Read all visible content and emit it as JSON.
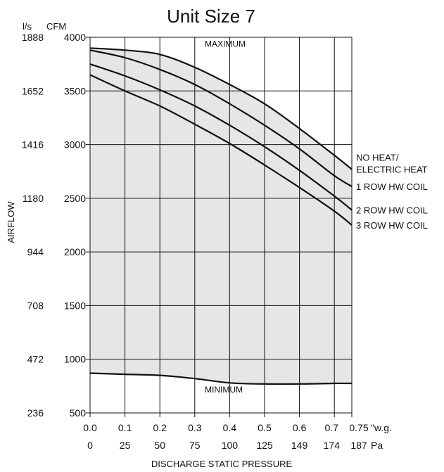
{
  "chart_data": {
    "type": "area",
    "title": "Unit Size 7",
    "ylabel": "AIRFLOW",
    "xlabel": "DISCHARGE STATIC PRESSURE",
    "y_unit_left": "l/s",
    "y_unit_right": "CFM",
    "x_unit_top": "\"w.g.",
    "x_unit_bottom": "Pa",
    "xlim": [
      0,
      0.75
    ],
    "ylim": [
      500,
      4000
    ],
    "grid": true,
    "x_ticks": [
      {
        "inwg": 0.0,
        "inwg_label": "0.0",
        "pa_label": "0"
      },
      {
        "inwg": 0.1,
        "inwg_label": "0.1",
        "pa_label": "25"
      },
      {
        "inwg": 0.2,
        "inwg_label": "0.2",
        "pa_label": "50"
      },
      {
        "inwg": 0.3,
        "inwg_label": "0.3",
        "pa_label": "75"
      },
      {
        "inwg": 0.4,
        "inwg_label": "0.4",
        "pa_label": "100"
      },
      {
        "inwg": 0.5,
        "inwg_label": "0.5",
        "pa_label": "125"
      },
      {
        "inwg": 0.6,
        "inwg_label": "0.6",
        "pa_label": "149"
      },
      {
        "inwg": 0.7,
        "inwg_label": "0.7",
        "pa_label": "174"
      },
      {
        "inwg": 0.75,
        "inwg_label": "0.75",
        "pa_label": "187"
      }
    ],
    "y_ticks": [
      {
        "cfm": 4000,
        "cfm_label": "4000",
        "ls_label": "1888"
      },
      {
        "cfm": 3500,
        "cfm_label": "3500",
        "ls_label": "1652"
      },
      {
        "cfm": 3000,
        "cfm_label": "3000",
        "ls_label": "1416"
      },
      {
        "cfm": 2500,
        "cfm_label": "2500",
        "ls_label": "1180"
      },
      {
        "cfm": 2000,
        "cfm_label": "2000",
        "ls_label": "944"
      },
      {
        "cfm": 1500,
        "cfm_label": "1500",
        "ls_label": "708"
      },
      {
        "cfm": 1000,
        "cfm_label": "1000",
        "ls_label": "472"
      },
      {
        "cfm": 500,
        "cfm_label": "500",
        "ls_label": "236"
      }
    ],
    "series": [
      {
        "name": "NO HEAT/ ELECTRIC HEAT",
        "label_lines": [
          "NO HEAT/",
          "ELECTRIC HEAT"
        ],
        "role": "maximum",
        "x": [
          0,
          0.1,
          0.2,
          0.3,
          0.4,
          0.5,
          0.6,
          0.7,
          0.75
        ],
        "y": [
          3900,
          3880,
          3840,
          3720,
          3560,
          3380,
          3150,
          2900,
          2770
        ]
      },
      {
        "name": "1 ROW HW COIL",
        "label_lines": [
          "1 ROW HW COIL"
        ],
        "x": [
          0,
          0.1,
          0.2,
          0.3,
          0.4,
          0.5,
          0.6,
          0.7,
          0.75
        ],
        "y": [
          3880,
          3810,
          3700,
          3560,
          3380,
          3180,
          2960,
          2710,
          2610
        ]
      },
      {
        "name": "2 ROW HW COIL",
        "label_lines": [
          "2 ROW HW COIL"
        ],
        "x": [
          0,
          0.1,
          0.2,
          0.3,
          0.4,
          0.5,
          0.6,
          0.7,
          0.75
        ],
        "y": [
          3750,
          3640,
          3510,
          3360,
          3180,
          2980,
          2760,
          2520,
          2390
        ]
      },
      {
        "name": "3 ROW HW COIL",
        "label_lines": [
          "3 ROW HW COIL"
        ],
        "x": [
          0,
          0.1,
          0.2,
          0.3,
          0.4,
          0.5,
          0.6,
          0.7,
          0.75
        ],
        "y": [
          3650,
          3500,
          3360,
          3190,
          3010,
          2810,
          2600,
          2380,
          2250
        ]
      },
      {
        "name": "MINIMUM",
        "role": "minimum",
        "x": [
          0,
          0.1,
          0.2,
          0.3,
          0.4,
          0.5,
          0.6,
          0.7,
          0.75
        ],
        "y": [
          870,
          860,
          850,
          820,
          780,
          770,
          770,
          775,
          775
        ]
      }
    ],
    "annotations": [
      "MAXIMUM",
      "MINIMUM"
    ],
    "colors": {
      "fill": "#e6e6e6",
      "line": "#111111",
      "grid": "#111111"
    }
  }
}
